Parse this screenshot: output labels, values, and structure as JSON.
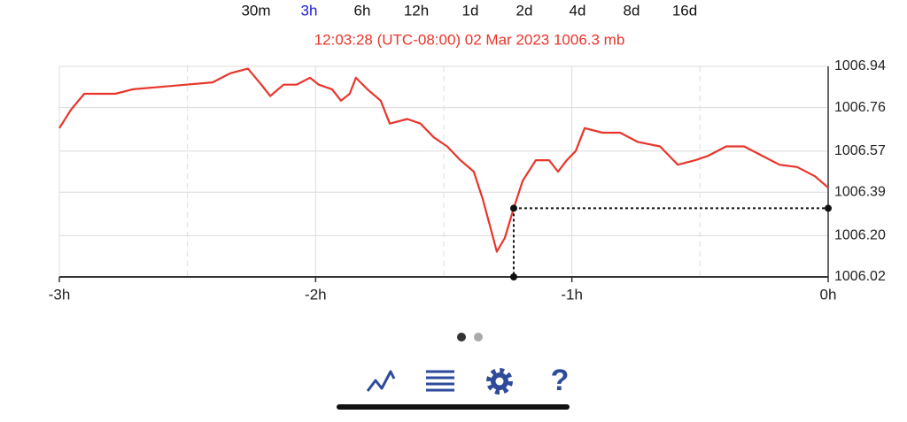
{
  "tabs": [
    {
      "label": "30m",
      "selected": false
    },
    {
      "label": "3h",
      "selected": true
    },
    {
      "label": "6h",
      "selected": false
    },
    {
      "label": "12h",
      "selected": false
    },
    {
      "label": "1d",
      "selected": false
    },
    {
      "label": "2d",
      "selected": false
    },
    {
      "label": "4d",
      "selected": false
    },
    {
      "label": "8d",
      "selected": false
    },
    {
      "label": "16d",
      "selected": false
    }
  ],
  "readout": "12:03:28 (UTC-08:00) 02 Mar 2023 1006.3 mb",
  "chart_data": {
    "type": "line",
    "x": [
      -3,
      -2.955,
      -2.903,
      -2.851,
      -2.782,
      -2.713,
      -2.609,
      -2.505,
      -2.402,
      -2.333,
      -2.264,
      -2.212,
      -2.177,
      -2.125,
      -2.074,
      -2.022,
      -1.988,
      -1.936,
      -1.901,
      -1.867,
      -1.843,
      -1.798,
      -1.746,
      -1.711,
      -1.642,
      -1.591,
      -1.539,
      -1.487,
      -1.435,
      -1.383,
      -1.348,
      -1.314,
      -1.293,
      -1.262,
      -1.227,
      -1.192,
      -1.141,
      -1.089,
      -1.054,
      -1.02,
      -0.985,
      -0.95,
      -0.881,
      -0.812,
      -0.743,
      -0.656,
      -0.587,
      -0.518,
      -0.467,
      -0.398,
      -0.328,
      -0.259,
      -0.19,
      -0.121,
      -0.052,
      0
    ],
    "series": [
      {
        "color": "#e8352b",
        "values": [
          1006.67,
          1006.75,
          1006.82,
          1006.82,
          1006.82,
          1006.84,
          1006.85,
          1006.86,
          1006.87,
          1006.91,
          1006.93,
          1006.86,
          1006.81,
          1006.86,
          1006.86,
          1006.89,
          1006.86,
          1006.84,
          1006.79,
          1006.82,
          1006.89,
          1006.84,
          1006.79,
          1006.69,
          1006.71,
          1006.69,
          1006.63,
          1006.59,
          1006.53,
          1006.48,
          1006.36,
          1006.22,
          1006.13,
          1006.19,
          1006.32,
          1006.44,
          1006.53,
          1006.53,
          1006.48,
          1006.53,
          1006.57,
          1006.67,
          1006.65,
          1006.65,
          1006.61,
          1006.59,
          1006.51,
          1006.53,
          1006.55,
          1006.59,
          1006.59,
          1006.55,
          1006.51,
          1006.5,
          1006.46,
          1006.41
        ]
      }
    ],
    "xlim": [
      -3,
      0
    ],
    "xticks": [
      {
        "value": -3,
        "label": "-3h"
      },
      {
        "value": -2,
        "label": "-2h"
      },
      {
        "value": -1,
        "label": "-1h"
      },
      {
        "value": 0,
        "label": "0h"
      }
    ],
    "minor_xticks": [
      -2.5,
      -1.5,
      -0.5
    ],
    "ylim": [
      1006.02,
      1006.94
    ],
    "yticks": [
      1006.02,
      {
        "value": 1006.2,
        "label": "1006.20"
      },
      1006.39,
      1006.57,
      1006.76,
      1006.94
    ],
    "grid": true,
    "cursor": {
      "x": -1.227,
      "y": 1006.32
    }
  }
}
